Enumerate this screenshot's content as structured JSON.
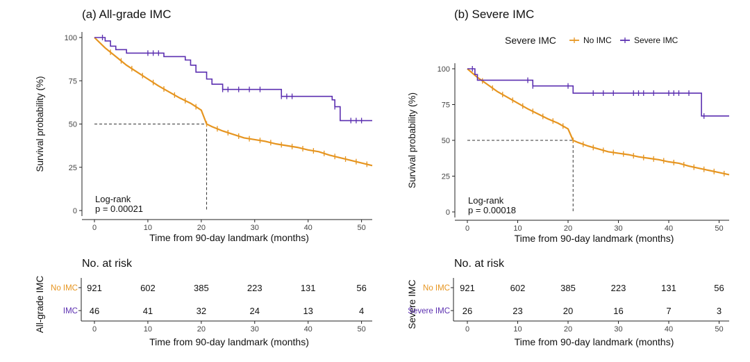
{
  "colors": {
    "no_imc": "#e69520",
    "imc": "#5b2fb0",
    "axis": "#222222",
    "ref_line": "#333333"
  },
  "legend_b": {
    "title": "Severe IMC",
    "items": [
      "No IMC",
      "Severe IMC"
    ],
    "position": "top"
  },
  "chart_data": [
    {
      "type": "line",
      "title": "(a) All-grade IMC",
      "xlabel": "Time from 90-day landmark (months)",
      "ylabel": "Survival probability (%)",
      "xlim": [
        0,
        52
      ],
      "ylim": [
        0,
        100
      ],
      "xticks": [
        "0",
        "10",
        "20",
        "30",
        "40",
        "50"
      ],
      "yticks": [
        "0",
        "25",
        "50",
        "75",
        "100"
      ],
      "grid": false,
      "annotation": [
        "Log-rank",
        "p = 0.00021"
      ],
      "median_survival": {
        "x": 21,
        "y": 50
      },
      "series": [
        {
          "key": "no_imc",
          "x": [
            0,
            2,
            4,
            6,
            8,
            10,
            12,
            14,
            16,
            18,
            20,
            21,
            22,
            24,
            26,
            28,
            30,
            32,
            34,
            36,
            38,
            40,
            42,
            44,
            46,
            48,
            50,
            52
          ],
          "y": [
            100,
            94,
            89,
            84,
            80,
            76,
            72,
            68.5,
            65,
            62,
            58,
            50,
            48.5,
            46,
            44,
            42,
            41,
            40,
            38.5,
            37.5,
            36.5,
            35,
            34,
            32,
            30.5,
            29,
            27.5,
            26
          ],
          "censor_x": [
            3,
            5,
            7,
            9,
            11,
            13,
            15,
            17,
            19,
            21,
            23,
            25,
            27,
            29,
            31,
            33,
            35,
            37,
            39,
            41,
            43,
            45,
            47,
            49,
            51
          ]
        },
        {
          "key": "imc",
          "steps": [
            [
              0,
              100
            ],
            [
              2,
              98
            ],
            [
              3,
              95
            ],
            [
              4,
              93
            ],
            [
              6,
              91
            ],
            [
              13,
              89
            ],
            [
              17,
              87
            ],
            [
              18,
              84
            ],
            [
              19,
              80
            ],
            [
              21,
              76
            ],
            [
              22,
              73
            ],
            [
              24,
              70
            ],
            [
              35,
              66
            ],
            [
              44.5,
              64
            ],
            [
              45,
              60
            ],
            [
              46,
              52
            ],
            [
              52,
              52
            ]
          ],
          "censor_x": [
            1.5,
            10,
            11,
            12,
            24,
            25,
            27,
            29,
            31,
            35,
            36,
            37,
            45,
            48,
            49,
            50
          ]
        }
      ],
      "risk_table": {
        "title": "No. at risk",
        "ylabel": "All-grade IMC",
        "xlabel": "Time from 90-day landmark (months)",
        "xticks": [
          "0",
          "10",
          "20",
          "30",
          "40",
          "50"
        ],
        "rows": [
          {
            "label": "No IMC",
            "key": "no_imc",
            "values": [
              "921",
              "602",
              "385",
              "223",
              "131",
              "56"
            ]
          },
          {
            "label": "IMC",
            "key": "imc",
            "values": [
              "46",
              "41",
              "32",
              "24",
              "13",
              "4"
            ]
          }
        ]
      }
    },
    {
      "type": "line",
      "title": "(b) Severe IMC",
      "xlabel": "Time from 90-day landmark (months)",
      "ylabel": "Survival probability (%)",
      "xlim": [
        0,
        52
      ],
      "ylim": [
        0,
        100
      ],
      "xticks": [
        "0",
        "10",
        "20",
        "30",
        "40",
        "50"
      ],
      "yticks": [
        "0",
        "25",
        "50",
        "75",
        "100"
      ],
      "grid": false,
      "annotation": [
        "Log-rank",
        "p = 0.00018"
      ],
      "median_survival": {
        "x": 21,
        "y": 50
      },
      "series": [
        {
          "key": "no_imc",
          "x": [
            0,
            2,
            4,
            6,
            8,
            10,
            12,
            14,
            16,
            18,
            20,
            21,
            22,
            24,
            26,
            28,
            30,
            32,
            34,
            36,
            38,
            40,
            42,
            44,
            46,
            48,
            50,
            52
          ],
          "y": [
            100,
            94,
            89,
            84,
            80,
            76,
            72,
            68.5,
            65,
            62,
            58,
            50,
            48.5,
            46,
            44,
            42,
            41,
            40,
            38.5,
            37.5,
            36.5,
            35,
            34,
            32,
            30.5,
            29,
            27.5,
            26
          ],
          "censor_x": [
            3,
            5,
            7,
            9,
            11,
            13,
            15,
            17,
            19,
            21,
            23,
            25,
            27,
            29,
            31,
            33,
            35,
            37,
            39,
            41,
            43,
            45,
            47,
            49,
            51
          ]
        },
        {
          "key": "imc",
          "steps": [
            [
              0,
              100
            ],
            [
              1.5,
              96
            ],
            [
              2,
              92
            ],
            [
              13,
              88
            ],
            [
              21,
              83
            ],
            [
              46.5,
              67
            ],
            [
              52,
              67
            ]
          ],
          "censor_x": [
            1,
            12,
            13,
            20,
            25,
            27,
            29,
            33,
            34,
            35,
            37,
            40,
            41,
            42,
            44,
            47
          ]
        }
      ],
      "risk_table": {
        "title": "No. at risk",
        "ylabel": "Severe IMC",
        "xlabel": "Time from 90-day landmark (months)",
        "xticks": [
          "0",
          "10",
          "20",
          "30",
          "40",
          "50"
        ],
        "rows": [
          {
            "label": "No IMC",
            "key": "no_imc",
            "values": [
              "921",
              "602",
              "385",
              "223",
              "131",
              "56"
            ]
          },
          {
            "label": "Severe IMC",
            "key": "imc",
            "values": [
              "26",
              "23",
              "20",
              "16",
              "7",
              "3"
            ]
          }
        ]
      }
    }
  ]
}
